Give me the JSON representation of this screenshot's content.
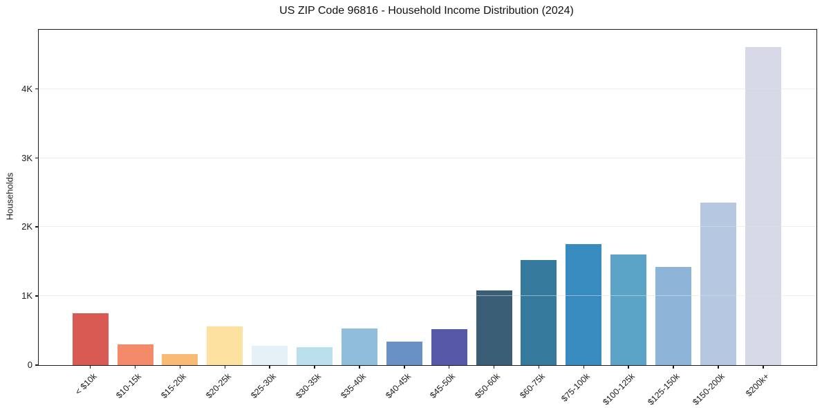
{
  "chart_data": {
    "type": "bar",
    "title": "US ZIP Code 96816 - Household Income Distribution (2024)",
    "xlabel": "",
    "ylabel": "Households",
    "categories": [
      "< $10k",
      "$10-15k",
      "$15-20k",
      "$20-25k",
      "$25-30k",
      "$30-35k",
      "$35-40k",
      "$40-45k",
      "$45-50k",
      "$50-60k",
      "$60-75k",
      "$75-100k",
      "$100-125k",
      "$125-150k",
      "$150-200k",
      "$200k+"
    ],
    "values": [
      750,
      300,
      165,
      565,
      280,
      260,
      530,
      340,
      520,
      1080,
      1520,
      1755,
      1600,
      1425,
      2355,
      4610
    ],
    "bar_colors": [
      "#d85a52",
      "#f48a6a",
      "#f9ba73",
      "#fde1a0",
      "#e5f1f6",
      "#bce0eb",
      "#90bddc",
      "#6991c4",
      "#5559a8",
      "#3a5e76",
      "#35799d",
      "#388bbf",
      "#5ba4c8",
      "#8eb4d8",
      "#b6c8e1",
      "#d8d9e6"
    ],
    "yticks": {
      "values": [
        0,
        1000,
        2000,
        3000,
        4000
      ],
      "labels": [
        "0",
        "1K",
        "2K",
        "3K",
        "4K"
      ]
    },
    "ylim": [
      0,
      4860
    ],
    "grid": "horizontal-light",
    "legend": "none",
    "x_tick_rotation_deg": 45,
    "axis_color": "#1a1a1a",
    "background": "#ffffff"
  }
}
